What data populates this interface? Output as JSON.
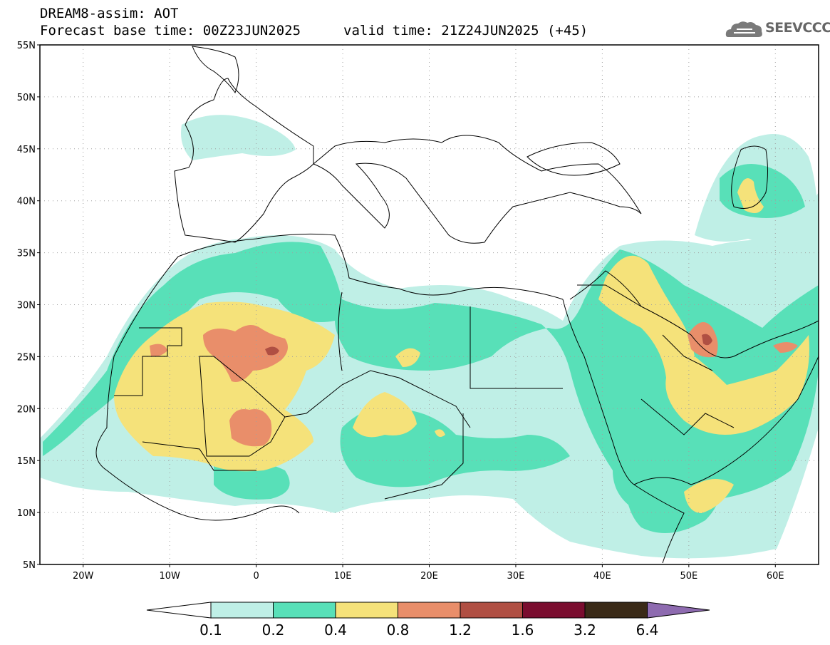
{
  "title": {
    "line1": "DREAM8-assim: AOT",
    "line2": "Forecast base time: 00Z23JUN2025",
    "valid": "valid time: 21Z24JUN2025 (+45)"
  },
  "logo": {
    "text": "SEEVCCC",
    "icon": "cloud-logo-icon"
  },
  "map": {
    "lat_range": [
      5,
      55
    ],
    "lon_range": [
      -25,
      65
    ],
    "lat_ticks": [
      {
        "v": 5,
        "label": "5N"
      },
      {
        "v": 10,
        "label": "10N"
      },
      {
        "v": 15,
        "label": "15N"
      },
      {
        "v": 20,
        "label": "20N"
      },
      {
        "v": 25,
        "label": "25N"
      },
      {
        "v": 30,
        "label": "30N"
      },
      {
        "v": 35,
        "label": "35N"
      },
      {
        "v": 40,
        "label": "40N"
      },
      {
        "v": 45,
        "label": "45N"
      },
      {
        "v": 50,
        "label": "50N"
      },
      {
        "v": 55,
        "label": "55N"
      }
    ],
    "lon_ticks": [
      {
        "v": -20,
        "label": "20W"
      },
      {
        "v": -10,
        "label": "10W"
      },
      {
        "v": 0,
        "label": "0"
      },
      {
        "v": 10,
        "label": "10E"
      },
      {
        "v": 20,
        "label": "20E"
      },
      {
        "v": 30,
        "label": "30E"
      },
      {
        "v": 40,
        "label": "40E"
      },
      {
        "v": 50,
        "label": "50E"
      },
      {
        "v": 60,
        "label": "60E"
      }
    ],
    "grid": true
  },
  "colorbar": {
    "levels": [
      "0.1",
      "0.2",
      "0.4",
      "0.8",
      "1.2",
      "1.6",
      "3.2",
      "6.4"
    ],
    "colors": [
      "#bfefe6",
      "#58e0b8",
      "#f5e27a",
      "#e98e6a",
      "#b04f43",
      "#7a0d2f",
      "#3a2a17"
    ],
    "under_color": "#ffffff",
    "over_color": "#8e6bb0"
  },
  "colors": {
    "c1": "#bfefe6",
    "c2": "#58e0b8",
    "c3": "#f5e27a",
    "c4": "#e98e6a",
    "c5": "#b04f43"
  }
}
